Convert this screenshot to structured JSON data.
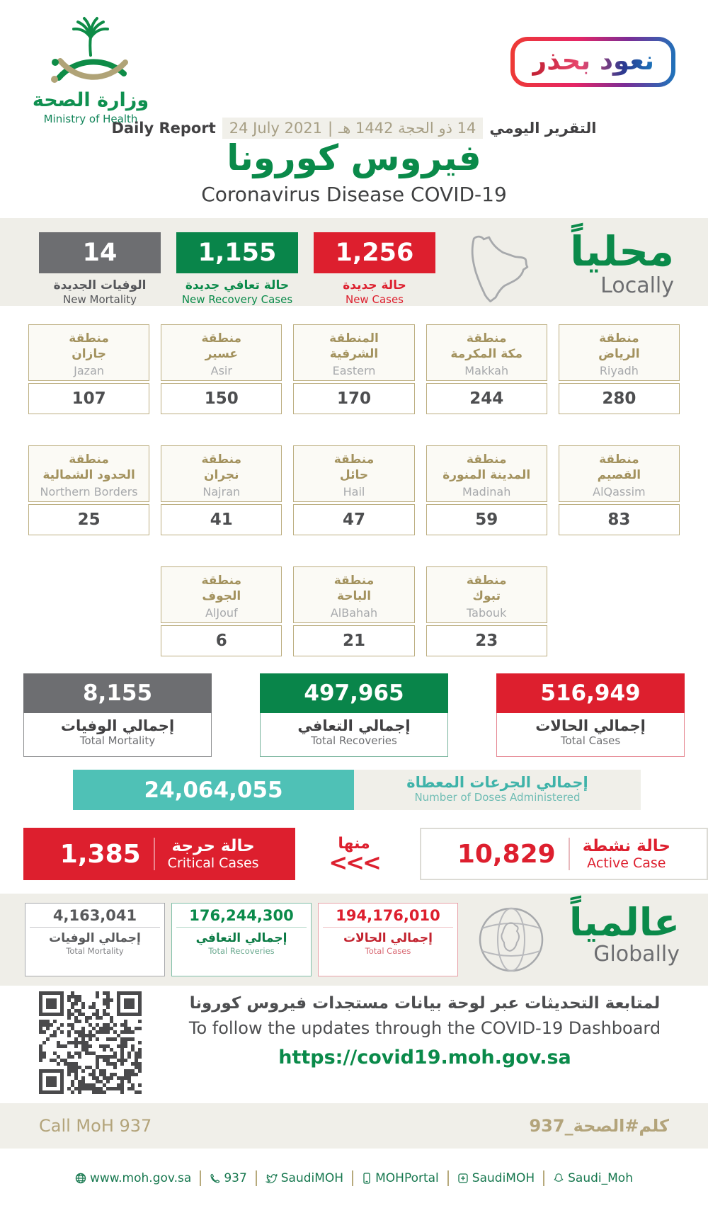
{
  "colors": {
    "green": "#0a8a4a",
    "red": "#dd1f2e",
    "gray": "#6d6e71",
    "teal": "#4fc1b6",
    "tan": "#a3925e",
    "dark": "#414042"
  },
  "header": {
    "logo_ar": "وزارة الصحة",
    "logo_en": "Ministry of Health",
    "badge": "نعود بحذر",
    "report_en": "Daily Report",
    "report_ar": "التقرير اليومي",
    "date_en": "24 July 2021",
    "date_sep": "|",
    "date_hijri": "14 ذو الحجة 1442 هـ",
    "title_ar": "فيروس كورونا",
    "title_en": "Coronavirus Disease COVID-19"
  },
  "locally": {
    "title_ar": "محلياً",
    "title_en": "Locally",
    "new_mortality": {
      "value": "14",
      "label_ar": "الوفيات الجديدة",
      "label_en": "New Mortality"
    },
    "new_recovery": {
      "value": "1,155",
      "label_ar": "حالة تعافي جديدة",
      "label_en": "New Recovery Cases"
    },
    "new_cases": {
      "value": "1,256",
      "label_ar": "حالة جديدة",
      "label_en": "New Cases"
    }
  },
  "regions": [
    {
      "ar1": "منطقة",
      "ar2": "جازان",
      "en": "Jazan",
      "value": "107"
    },
    {
      "ar1": "منطقة",
      "ar2": "عسير",
      "en": "Asir",
      "value": "150"
    },
    {
      "ar1": "المنطقة",
      "ar2": "الشرقية",
      "en": "Eastern",
      "value": "170"
    },
    {
      "ar1": "منطقة",
      "ar2": "مكة المكرمة",
      "en": "Makkah",
      "value": "244"
    },
    {
      "ar1": "منطقة",
      "ar2": "الرياض",
      "en": "Riyadh",
      "value": "280"
    },
    {
      "ar1": "منطقة",
      "ar2": "الحدود الشمالية",
      "en": "Northern Borders",
      "value": "25"
    },
    {
      "ar1": "منطقة",
      "ar2": "نجران",
      "en": "Najran",
      "value": "41"
    },
    {
      "ar1": "منطقة",
      "ar2": "حائل",
      "en": "Hail",
      "value": "47"
    },
    {
      "ar1": "منطقة",
      "ar2": "المدينة المنورة",
      "en": "Madinah",
      "value": "59"
    },
    {
      "ar1": "منطقة",
      "ar2": "القصيم",
      "en": "AlQassim",
      "value": "83"
    },
    {
      "ar1": "منطقة",
      "ar2": "الجوف",
      "en": "AlJouf",
      "value": "6"
    },
    {
      "ar1": "منطقة",
      "ar2": "الباحة",
      "en": "AlBahah",
      "value": "21"
    },
    {
      "ar1": "منطقة",
      "ar2": "تبوك",
      "en": "Tabouk",
      "value": "23"
    }
  ],
  "totals": {
    "mortality": {
      "value": "8,155",
      "label_ar": "إجمالي الوفيات",
      "label_en": "Total Mortality"
    },
    "recoveries": {
      "value": "497,965",
      "label_ar": "إجمالي التعافي",
      "label_en": "Total Recoveries"
    },
    "cases": {
      "value": "516,949",
      "label_ar": "إجمالي الحالات",
      "label_en": "Total Cases"
    }
  },
  "doses": {
    "value": "24,064,055",
    "label_ar": "إجمالي الجرعات المعطاة",
    "label_en": "Number of Doses Administered"
  },
  "critical": {
    "value": "1,385",
    "label_ar": "حالة حرجة",
    "label_en": "Critical Cases"
  },
  "of_which": {
    "label_ar": "منها",
    "arrows": "<<<"
  },
  "active": {
    "value": "10,829",
    "label_ar": "حالة نشطة",
    "label_en": "Active Case"
  },
  "globally": {
    "title_ar": "عالمياً",
    "title_en": "Globally",
    "mortality": {
      "value": "4,163,041",
      "label_ar": "إجمالي الوفيات",
      "label_en": "Total Mortality"
    },
    "recoveries": {
      "value": "176,244,300",
      "label_ar": "إجمالي التعافي",
      "label_en": "Total Recoveries"
    },
    "cases": {
      "value": "194,176,010",
      "label_ar": "إجمالي الحالات",
      "label_en": "Total Cases"
    }
  },
  "dashboard": {
    "line_ar": "لمتابعة التحديثات عبر لوحة بيانات مستجدات فيروس كورونا",
    "line_en": "To follow the updates through the COVID-19 Dashboard",
    "url": "https://covid19.moh.gov.sa"
  },
  "callbar": {
    "left": "Call MoH 937",
    "right": "كلم#الصحة_937"
  },
  "footer": {
    "items": [
      {
        "icon": "globe-icon",
        "label": "www.moh.gov.sa"
      },
      {
        "icon": "phone-icon",
        "label": "937"
      },
      {
        "icon": "twitter-icon",
        "label": "SaudiMOH"
      },
      {
        "icon": "mobile-icon",
        "label": "MOHPortal"
      },
      {
        "icon": "app-icon",
        "label": "SaudiMOH"
      },
      {
        "icon": "snapchat-icon",
        "label": "Saudi_Moh"
      }
    ]
  }
}
